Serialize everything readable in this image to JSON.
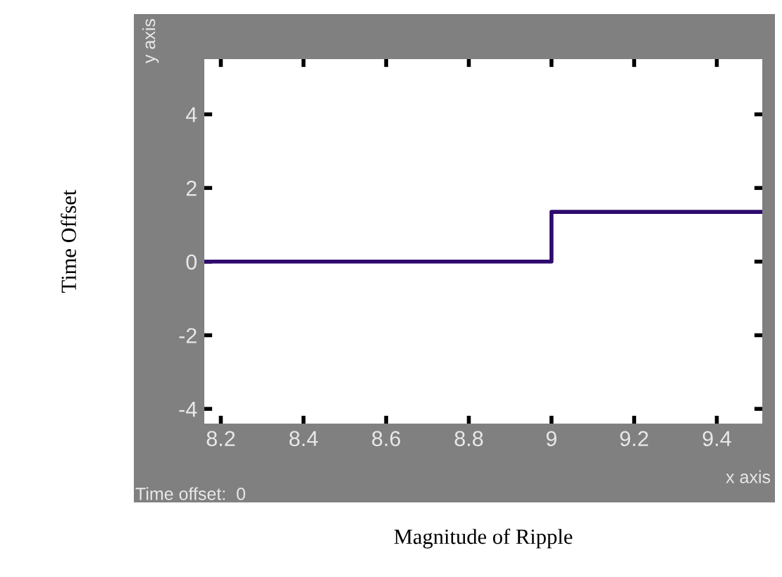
{
  "chart_data": {
    "type": "step",
    "xlabel": "Magnitude of Ripple",
    "ylabel": "Time Offset",
    "annotations": [
      "y axis",
      "x axis",
      "Time offset:  0"
    ],
    "x": [
      8.16,
      9.0,
      9.51
    ],
    "series": [
      {
        "color": "#2e0a6e",
        "values": [
          0,
          1.35,
          1.35
        ]
      }
    ],
    "xlim": [
      8.16,
      9.51
    ],
    "xticks": [
      8.2,
      8.4,
      8.6,
      8.8,
      9,
      9.2,
      9.4
    ],
    "ylim": [
      -4.4,
      5.5
    ],
    "yticks": [
      {
        "value": -4,
        "label": "-4"
      },
      {
        "value": -2,
        "label": "-2"
      },
      0,
      2,
      4
    ],
    "tick_labels": true
  }
}
